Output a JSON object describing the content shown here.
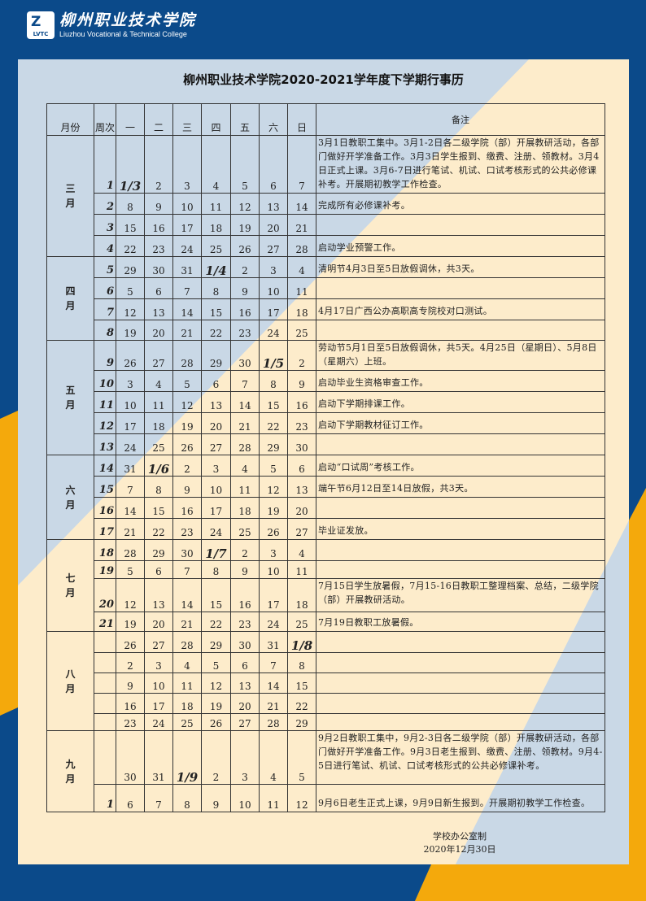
{
  "logo": {
    "cn": "柳州职业技术学院",
    "en": "Liuzhou Vocational & Technical College",
    "badge": "LVTC"
  },
  "colors": {
    "navy": "#0b4a8a",
    "panel": "#c9d8e6",
    "cream": "#fdeccb",
    "orange": "#f4a90c"
  },
  "title": "柳州职业技术学院2020-2021学年度下学期行事历",
  "header": {
    "month": "月份",
    "week": "周次",
    "days": [
      "一",
      "二",
      "三",
      "四",
      "五",
      "六",
      "日"
    ],
    "note": "备注"
  },
  "months": [
    {
      "name": "三月",
      "rows": [
        {
          "week": "1",
          "days": [
            "1/3",
            "2",
            "3",
            "4",
            "5",
            "6",
            "7"
          ],
          "note": "3月1日教职工集中。3月1-2日各二级学院（部）开展教研活动，各部门做好开学准备工作。3月3日学生报到、缴费、注册、领教材。3月4日正式上课。3月6-7日进行笔试、机试、口试考核形式的公共必修课补考。开展期初教学工作检查。"
        },
        {
          "week": "2",
          "days": [
            "8",
            "9",
            "10",
            "11",
            "12",
            "13",
            "14"
          ],
          "note": "完成所有必修课补考。"
        },
        {
          "week": "3",
          "days": [
            "15",
            "16",
            "17",
            "18",
            "19",
            "20",
            "21"
          ],
          "note": ""
        },
        {
          "week": "4",
          "days": [
            "22",
            "23",
            "24",
            "25",
            "26",
            "27",
            "28"
          ],
          "note": "启动学业预警工作。"
        }
      ]
    },
    {
      "name": "四月",
      "rows": [
        {
          "week": "5",
          "days": [
            "29",
            "30",
            "31",
            "1/4",
            "2",
            "3",
            "4"
          ],
          "note": "清明节4月3日至5日放假调休，共3天。"
        },
        {
          "week": "6",
          "days": [
            "5",
            "6",
            "7",
            "8",
            "9",
            "10",
            "11"
          ],
          "note": ""
        },
        {
          "week": "7",
          "days": [
            "12",
            "13",
            "14",
            "15",
            "16",
            "17",
            "18"
          ],
          "note": "4月17日广西公办高职高专院校对口测试。"
        },
        {
          "week": "8",
          "days": [
            "19",
            "20",
            "21",
            "22",
            "23",
            "24",
            "25"
          ],
          "note": ""
        }
      ]
    },
    {
      "name": "五月",
      "rows": [
        {
          "week": "9",
          "days": [
            "26",
            "27",
            "28",
            "29",
            "30",
            "1/5",
            "2"
          ],
          "note": "劳动节5月1日至5日放假调休，共5天。4月25日（星期日）、5月8日（星期六）上班。"
        },
        {
          "week": "10",
          "days": [
            "3",
            "4",
            "5",
            "6",
            "7",
            "8",
            "9"
          ],
          "note": "启动毕业生资格审查工作。"
        },
        {
          "week": "11",
          "days": [
            "10",
            "11",
            "12",
            "13",
            "14",
            "15",
            "16"
          ],
          "note": "启动下学期排课工作。"
        },
        {
          "week": "12",
          "days": [
            "17",
            "18",
            "19",
            "20",
            "21",
            "22",
            "23"
          ],
          "note": "启动下学期教材征订工作。"
        },
        {
          "week": "13",
          "days": [
            "24",
            "25",
            "26",
            "27",
            "28",
            "29",
            "30"
          ],
          "note": ""
        }
      ]
    },
    {
      "name": "六月",
      "rows": [
        {
          "week": "14",
          "days": [
            "31",
            "1/6",
            "2",
            "3",
            "4",
            "5",
            "6"
          ],
          "note": "启动“口试周”考核工作。"
        },
        {
          "week": "15",
          "days": [
            "7",
            "8",
            "9",
            "10",
            "11",
            "12",
            "13"
          ],
          "note": "端午节6月12日至14日放假，共3天。"
        },
        {
          "week": "16",
          "days": [
            "14",
            "15",
            "16",
            "17",
            "18",
            "19",
            "20"
          ],
          "note": ""
        },
        {
          "week": "17",
          "days": [
            "21",
            "22",
            "23",
            "24",
            "25",
            "26",
            "27"
          ],
          "note": "毕业证发放。"
        }
      ]
    },
    {
      "name": "七月",
      "rows": [
        {
          "week": "18",
          "days": [
            "28",
            "29",
            "30",
            "1/7",
            "2",
            "3",
            "4"
          ],
          "note": ""
        },
        {
          "week": "19",
          "days": [
            "5",
            "6",
            "7",
            "8",
            "9",
            "10",
            "11"
          ],
          "note": ""
        },
        {
          "week": "20",
          "days": [
            "12",
            "13",
            "14",
            "15",
            "16",
            "17",
            "18"
          ],
          "note": "7月15日学生放暑假，7月15-16日教职工整理档案、总结，二级学院（部）开展教研活动。"
        },
        {
          "week": "21",
          "days": [
            "19",
            "20",
            "21",
            "22",
            "23",
            "24",
            "25"
          ],
          "note": "7月19日教职工放暑假。"
        }
      ]
    },
    {
      "name": "八月",
      "rows": [
        {
          "week": "",
          "days": [
            "26",
            "27",
            "28",
            "29",
            "30",
            "31",
            "1/8"
          ],
          "note": ""
        },
        {
          "week": "",
          "days": [
            "2",
            "3",
            "4",
            "5",
            "6",
            "7",
            "8"
          ],
          "note": ""
        },
        {
          "week": "",
          "days": [
            "9",
            "10",
            "11",
            "12",
            "13",
            "14",
            "15"
          ],
          "note": ""
        },
        {
          "week": "",
          "days": [
            "16",
            "17",
            "18",
            "19",
            "20",
            "21",
            "22"
          ],
          "note": ""
        },
        {
          "week": "",
          "days": [
            "23",
            "24",
            "25",
            "26",
            "27",
            "28",
            "29"
          ],
          "note": ""
        }
      ]
    },
    {
      "name": "九月",
      "rows": [
        {
          "week": "",
          "days": [
            "30",
            "31",
            "1/9",
            "2",
            "3",
            "4",
            "5"
          ],
          "note": "9月2日教职工集中，9月2-3日各二级学院（部）开展教研活动，各部门做好开学准备工作。9月3日老生报到、缴费、注册、领教材。9月4-5日进行笔试、机试、口试考核形式的公共必修课补考。"
        },
        {
          "week": "1",
          "days": [
            "6",
            "7",
            "8",
            "9",
            "10",
            "11",
            "12"
          ],
          "note": "9月6日老生正式上课，9月9日新生报到。开展期初教学工作检查。"
        }
      ]
    }
  ],
  "footer": {
    "office": "学校办公室制",
    "date": "2020年12月30日"
  }
}
